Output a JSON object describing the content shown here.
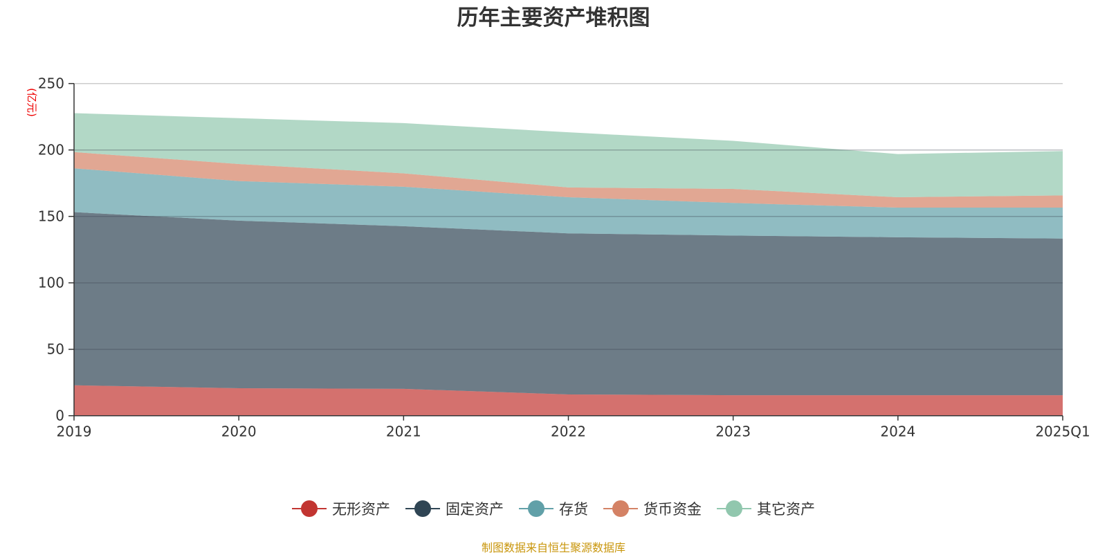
{
  "chart_data": {
    "type": "area",
    "stacked": true,
    "title": "历年主要资产堆积图",
    "ylabel": "(亿元)",
    "xlabel": "",
    "ylim": [
      0,
      250
    ],
    "yticks": [
      "0",
      "50",
      "100",
      "150",
      "200",
      "250"
    ],
    "categories": [
      "2019",
      "2020",
      "2021",
      "2022",
      "2023",
      "2024",
      "2025Q1"
    ],
    "grid": true,
    "legend_position": "bottom",
    "series": [
      {
        "name": "无形资产",
        "color": "#c23531",
        "values": [
          22.9,
          20.7,
          20.2,
          16.0,
          15.4,
          15.4,
          15.4
        ]
      },
      {
        "name": "固定资产",
        "color": "#2f4554",
        "values": [
          130.3,
          126.1,
          122.4,
          121.2,
          120.2,
          118.9,
          117.9
        ]
      },
      {
        "name": "存货",
        "color": "#61a0a8",
        "values": [
          33.0,
          29.8,
          29.7,
          27.2,
          24.5,
          22.3,
          23.3
        ]
      },
      {
        "name": "货币资金",
        "color": "#d48265",
        "values": [
          12.2,
          12.8,
          10.1,
          7.4,
          10.6,
          7.8,
          9.2
        ]
      },
      {
        "name": "其它资产",
        "color": "#91c7ae",
        "values": [
          29.3,
          34.5,
          37.8,
          41.5,
          36.2,
          32.5,
          33.4
        ]
      }
    ]
  },
  "footer": "制图数据来自恒生聚源数据库"
}
